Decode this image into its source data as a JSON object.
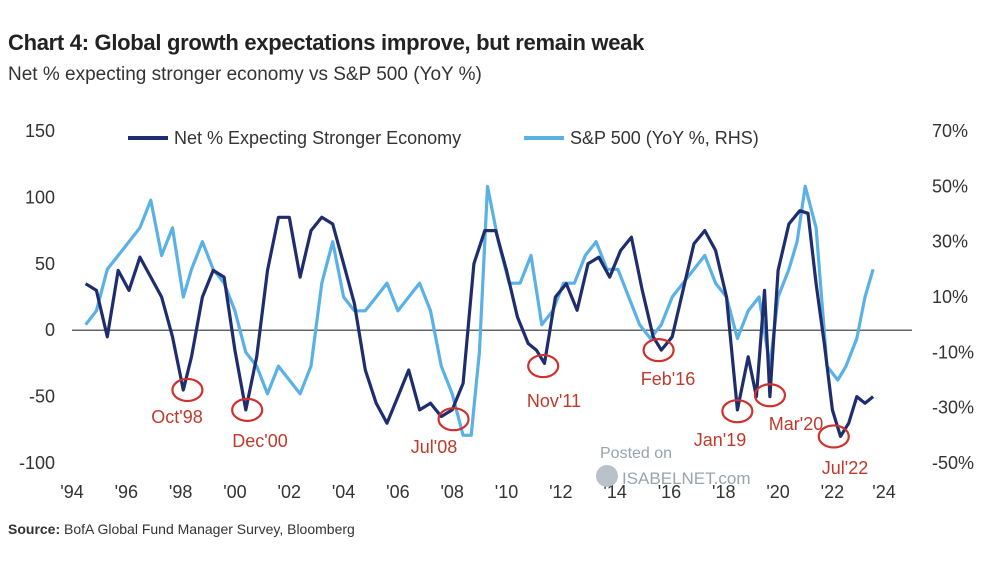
{
  "title": "Chart 4: Global growth expectations improve, but remain weak",
  "subtitle": "Net % expecting stronger economy vs S&P 500 (YoY %)",
  "source_label": "Source:",
  "source_text": "BofA Global Fund Manager Survey, Bloomberg",
  "watermark": {
    "line1": "Posted on",
    "line2": "ISABELNET.com"
  },
  "colors": {
    "net": "#1f2d6e",
    "spx": "#59b1e6",
    "annotation": "#d0312d"
  },
  "chart_data": {
    "type": "line",
    "x_range": [
      1994.5,
      2024.4
    ],
    "xtick_labels": [
      "'94",
      "'96",
      "'98",
      "'00",
      "'02",
      "'04",
      "'06",
      "'08",
      "'10",
      "'12",
      "'14",
      "'16",
      "'18",
      "'20",
      "'22",
      "'24"
    ],
    "xtick_values": [
      1994.5,
      1996.5,
      1998.5,
      2000.5,
      2002.5,
      2004.5,
      2006.5,
      2008.5,
      2010.5,
      2012.5,
      2014.5,
      2016.5,
      2018.5,
      2020.5,
      2022.5,
      2024.4
    ],
    "ylim_left": [
      -100,
      150
    ],
    "ytick_left": [
      "150",
      "100",
      "50",
      "0",
      "-50",
      "-100"
    ],
    "ylim_right": [
      -50,
      70
    ],
    "ytick_right": [
      "70%",
      "50%",
      "30%",
      "10%",
      "-10%",
      "-30%",
      "-50%"
    ],
    "legend_placement": "top",
    "series": [
      {
        "name": "Net % Expecting Stronger Economy",
        "axis": "left",
        "x": [
          1995.0,
          1995.4,
          1995.8,
          1996.2,
          1996.6,
          1997.0,
          1997.4,
          1997.8,
          1998.2,
          1998.6,
          1998.9,
          1999.3,
          1999.7,
          2000.1,
          2000.5,
          2000.9,
          2001.3,
          2001.7,
          2002.1,
          2002.5,
          2002.9,
          2003.3,
          2003.7,
          2004.1,
          2004.5,
          2004.9,
          2005.3,
          2005.7,
          2006.1,
          2006.5,
          2006.9,
          2007.3,
          2007.7,
          2008.1,
          2008.5,
          2008.9,
          2009.3,
          2009.7,
          2010.1,
          2010.5,
          2010.9,
          2011.3,
          2011.6,
          2011.9,
          2012.3,
          2012.7,
          2013.1,
          2013.5,
          2013.9,
          2014.3,
          2014.7,
          2015.1,
          2015.5,
          2015.9,
          2016.2,
          2016.6,
          2017.0,
          2017.4,
          2017.8,
          2018.2,
          2018.6,
          2019.0,
          2019.4,
          2019.7,
          2020.0,
          2020.2,
          2020.5,
          2020.9,
          2021.3,
          2021.6,
          2021.9,
          2022.2,
          2022.5,
          2022.8,
          2023.1,
          2023.4,
          2023.7,
          2024.0
        ],
        "y": [
          35,
          30,
          -5,
          45,
          30,
          55,
          40,
          25,
          -5,
          -45,
          -20,
          25,
          45,
          40,
          -15,
          -60,
          -20,
          45,
          85,
          85,
          40,
          75,
          85,
          80,
          50,
          20,
          -30,
          -55,
          -70,
          -50,
          -30,
          -60,
          -55,
          -65,
          -60,
          -40,
          50,
          75,
          75,
          45,
          10,
          -10,
          -15,
          -25,
          25,
          35,
          15,
          50,
          55,
          40,
          60,
          70,
          30,
          -5,
          -15,
          -5,
          30,
          65,
          75,
          60,
          25,
          -60,
          -20,
          -50,
          30,
          -50,
          45,
          80,
          90,
          88,
          35,
          -10,
          -60,
          -80,
          -70,
          -50,
          -55,
          -50
        ]
      },
      {
        "name": "S&P 500 (YoY %, RHS)",
        "axis": "right",
        "x": [
          1995.0,
          1995.4,
          1995.8,
          1996.2,
          1996.6,
          1997.0,
          1997.4,
          1997.8,
          1998.2,
          1998.6,
          1998.9,
          1999.3,
          1999.7,
          2000.1,
          2000.5,
          2000.9,
          2001.3,
          2001.7,
          2002.1,
          2002.5,
          2002.9,
          2003.3,
          2003.7,
          2004.1,
          2004.5,
          2004.9,
          2005.3,
          2005.7,
          2006.1,
          2006.5,
          2006.9,
          2007.3,
          2007.7,
          2008.1,
          2008.5,
          2008.9,
          2009.2,
          2009.5,
          2009.8,
          2010.2,
          2010.6,
          2011.0,
          2011.4,
          2011.8,
          2012.2,
          2012.6,
          2013.0,
          2013.4,
          2013.8,
          2014.2,
          2014.6,
          2015.0,
          2015.4,
          2015.8,
          2016.2,
          2016.6,
          2017.0,
          2017.4,
          2017.8,
          2018.2,
          2018.6,
          2019.0,
          2019.4,
          2019.8,
          2020.2,
          2020.5,
          2020.9,
          2021.2,
          2021.5,
          2021.9,
          2022.3,
          2022.7,
          2023.0,
          2023.4,
          2023.7,
          2024.0
        ],
        "y": [
          0,
          5,
          20,
          25,
          30,
          35,
          45,
          25,
          35,
          10,
          20,
          30,
          20,
          15,
          5,
          -10,
          -15,
          -25,
          -15,
          -20,
          -25,
          -15,
          15,
          30,
          10,
          5,
          5,
          10,
          15,
          5,
          10,
          15,
          5,
          -15,
          -25,
          -40,
          -40,
          -10,
          50,
          30,
          15,
          15,
          25,
          0,
          5,
          15,
          15,
          25,
          30,
          20,
          20,
          10,
          0,
          -5,
          0,
          10,
          15,
          20,
          25,
          15,
          10,
          -5,
          5,
          10,
          -15,
          10,
          20,
          30,
          50,
          35,
          -15,
          -20,
          -15,
          -5,
          10,
          20
        ]
      }
    ],
    "annotations": [
      {
        "label": "Oct'98",
        "x": 1998.75,
        "y": -45
      },
      {
        "label": "Dec'00",
        "x": 2000.95,
        "y": -60
      },
      {
        "label": "Jul'08",
        "x": 2008.55,
        "y": -67
      },
      {
        "label": "Nov'11",
        "x": 2011.85,
        "y": -27
      },
      {
        "label": "Feb'16",
        "x": 2016.1,
        "y": -15
      },
      {
        "label": "Jan'19",
        "x": 2019.0,
        "y": -61
      },
      {
        "label": "Mar'20",
        "x": 2020.2,
        "y": -49
      },
      {
        "label": "Jul'22",
        "x": 2022.55,
        "y": -80
      }
    ]
  }
}
